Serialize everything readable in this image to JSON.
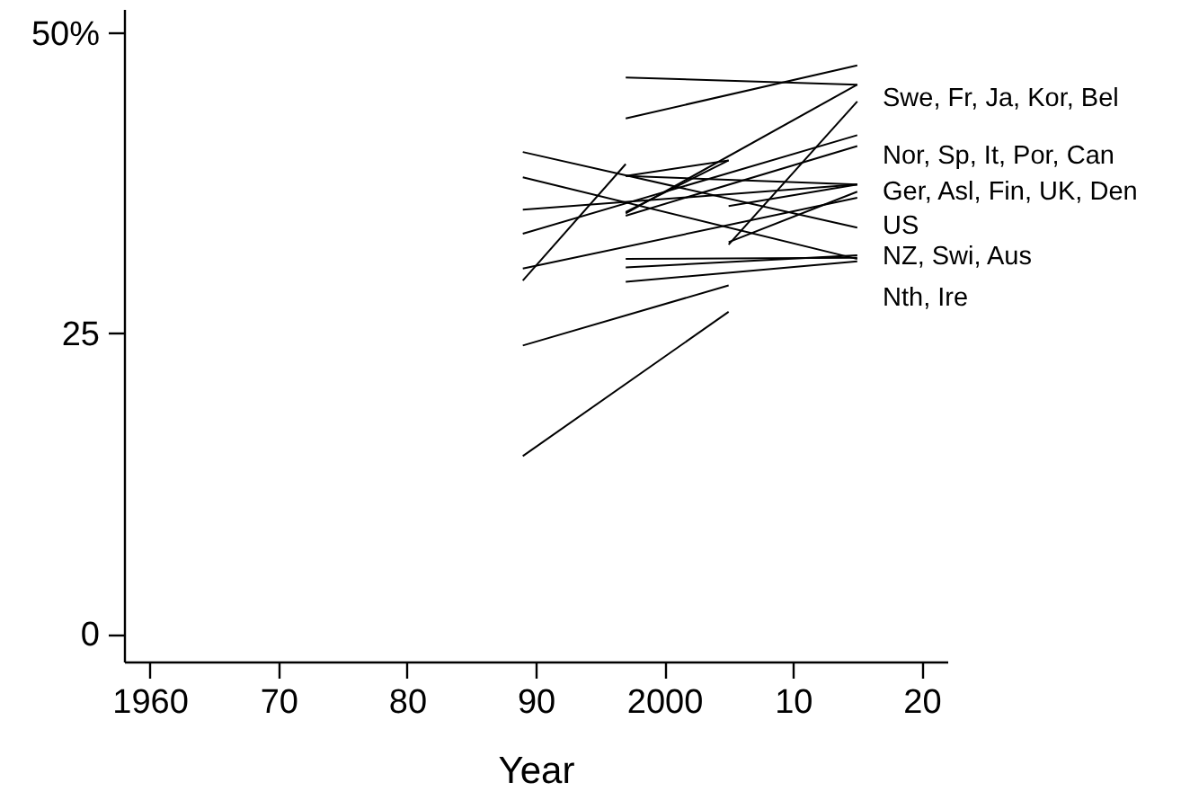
{
  "chart_data": {
    "type": "line",
    "xlabel": "Year",
    "xlim": [
      1958,
      2022
    ],
    "ylim": [
      -2.3,
      52
    ],
    "xticks": [
      1960,
      {
        "value": 1970,
        "label": "70"
      },
      {
        "value": 1980,
        "label": "80"
      },
      {
        "value": 1990,
        "label": "90"
      },
      2000,
      {
        "value": 2010,
        "label": "10"
      },
      {
        "value": 2020,
        "label": "20"
      }
    ],
    "yticks": [
      0,
      25,
      {
        "value": 50,
        "label": "50%"
      }
    ],
    "grid": false,
    "marker": "none",
    "series": [
      {
        "color": "#000000",
        "x": [
          1997,
          2015
        ],
        "values": [
          46.3,
          45.7
        ]
      },
      {
        "color": "#000000",
        "x": [
          1997,
          2015
        ],
        "values": [
          42.9,
          47.3
        ]
      },
      {
        "color": "#000000",
        "x": [
          1989,
          2015
        ],
        "values": [
          40.1,
          33.8
        ]
      },
      {
        "color": "#000000",
        "x": [
          1989,
          2015
        ],
        "values": [
          38.0,
          31.2
        ]
      },
      {
        "color": "#000000",
        "x": [
          1989,
          2015
        ],
        "values": [
          35.3,
          37.4
        ]
      },
      {
        "color": "#000000",
        "x": [
          1989,
          2015
        ],
        "values": [
          33.3,
          41.5
        ]
      },
      {
        "color": "#000000",
        "x": [
          1989,
          2015
        ],
        "values": [
          30.4,
          36.3
        ]
      },
      {
        "color": "#000000",
        "x": [
          1989,
          1997
        ],
        "values": [
          29.4,
          39.1
        ]
      },
      {
        "color": "#000000",
        "x": [
          1989,
          2005
        ],
        "values": [
          24.0,
          29.0
        ]
      },
      {
        "color": "#000000",
        "x": [
          1989,
          2005
        ],
        "values": [
          14.8,
          26.8
        ]
      },
      {
        "color": "#000000",
        "x": [
          1997,
          2005
        ],
        "values": [
          38.1,
          39.4
        ]
      },
      {
        "color": "#000000",
        "x": [
          1997,
          2015
        ],
        "values": [
          35.0,
          45.7
        ]
      },
      {
        "color": "#000000",
        "x": [
          1997,
          2015
        ],
        "values": [
          34.8,
          40.6
        ]
      },
      {
        "color": "#000000",
        "x": [
          1997,
          2005
        ],
        "values": [
          35.1,
          39.4
        ]
      },
      {
        "color": "#000000",
        "x": [
          1997,
          2015
        ],
        "values": [
          31.2,
          31.3
        ]
      },
      {
        "color": "#000000",
        "x": [
          1997,
          2015
        ],
        "values": [
          30.5,
          31.5
        ]
      },
      {
        "color": "#000000",
        "x": [
          1997,
          2015
        ],
        "values": [
          29.3,
          31.0
        ]
      },
      {
        "color": "#000000",
        "x": [
          1997,
          2015
        ],
        "values": [
          38.1,
          37.4
        ]
      },
      {
        "color": "#000000",
        "x": [
          2005,
          2015
        ],
        "values": [
          35.6,
          37.4
        ]
      },
      {
        "color": "#000000",
        "x": [
          2005,
          2015
        ],
        "values": [
          32.4,
          44.3
        ]
      },
      {
        "color": "#000000",
        "x": [
          2005,
          2015
        ],
        "values": [
          32.6,
          36.8
        ]
      }
    ],
    "annotations": [
      "Swe, Fr, Ja, Kor, Bel",
      "Nor, Sp, It, Por, Can",
      "Ger, Asl, Fin, UK, Den",
      "US",
      "NZ, Swi, Aus",
      "Nth, Ire"
    ]
  }
}
